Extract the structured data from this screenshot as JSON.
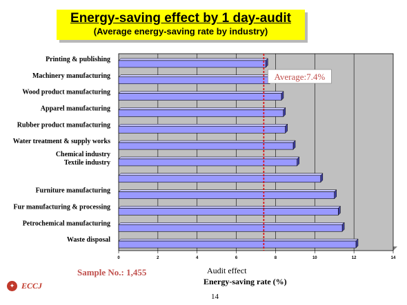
{
  "title": "Energy-saving effect by 1 day-audit",
  "subtitle": "(Average energy-saving rate by industry)",
  "sample_text": "Sample No.: 1,455",
  "xlabel_line1": "Audit effect",
  "xlabel_line2": "Energy-saving rate (%)",
  "logo_text": "ECCJ",
  "page_number": "14",
  "average_label": "Average:7.4%",
  "colors": {
    "bar": "#9999ff",
    "plot_bg": "#c0c0c0",
    "avg_line": "#e00000",
    "title_bg": "#ffff00"
  },
  "chart_data": {
    "type": "bar",
    "orientation": "horizontal",
    "categories": [
      "Printing & publishing",
      "Machinery manufacturing",
      "Wood product manufacturing",
      "Apparel manufacturing",
      "Rubber product manufacturing",
      "Water treatment & supply works",
      "Chemical industry",
      "Textile industry",
      "Furniture manufacturing",
      "Fur manufacturing & processing",
      "Petrochemical manufacturing",
      "Waste disposal"
    ],
    "values": [
      7.5,
      7.7,
      8.3,
      8.4,
      8.5,
      8.9,
      9.1,
      10.3,
      11.0,
      11.2,
      11.4,
      12.1
    ],
    "xlim": [
      0,
      14
    ],
    "xticks": [
      0,
      2,
      4,
      6,
      8,
      10,
      12,
      14
    ],
    "average": 7.4,
    "grid": true
  }
}
